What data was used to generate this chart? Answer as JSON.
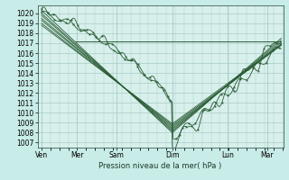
{
  "bg_color": "#c8ece8",
  "plot_bg_color": "#d8f0ec",
  "grid_color": "#a8ccc8",
  "line_color": "#2a5c35",
  "xlabel": "Pression niveau de la mer( hPa )",
  "xtick_labels": [
    "Ven",
    "Mer",
    "Sam",
    "Dim",
    "Lun",
    "Mar"
  ],
  "xtick_positions": [
    0.0,
    0.9,
    1.9,
    3.3,
    4.7,
    5.7
  ],
  "ylim": [
    1006.5,
    1020.8
  ],
  "xlim": [
    -0.1,
    6.1
  ],
  "yticks": [
    1007,
    1008,
    1009,
    1010,
    1011,
    1012,
    1013,
    1014,
    1015,
    1016,
    1017,
    1018,
    1019,
    1020
  ],
  "flat_line_y": 1017.2,
  "flat_line_x_start": 0.85,
  "flat_line_x_end": 6.05,
  "fan_apex_x": 3.3,
  "fan_apex_y": 1008.0,
  "fan_starts": [
    1020.3,
    1020.0,
    1019.8,
    1019.5,
    1019.3,
    1019.0,
    1018.8
  ],
  "fan_start_x": 0.0,
  "fan_ends": [
    1017.5,
    1017.3,
    1017.1,
    1016.9,
    1016.8,
    1016.8,
    1016.9
  ],
  "fan_end_x": 6.05
}
